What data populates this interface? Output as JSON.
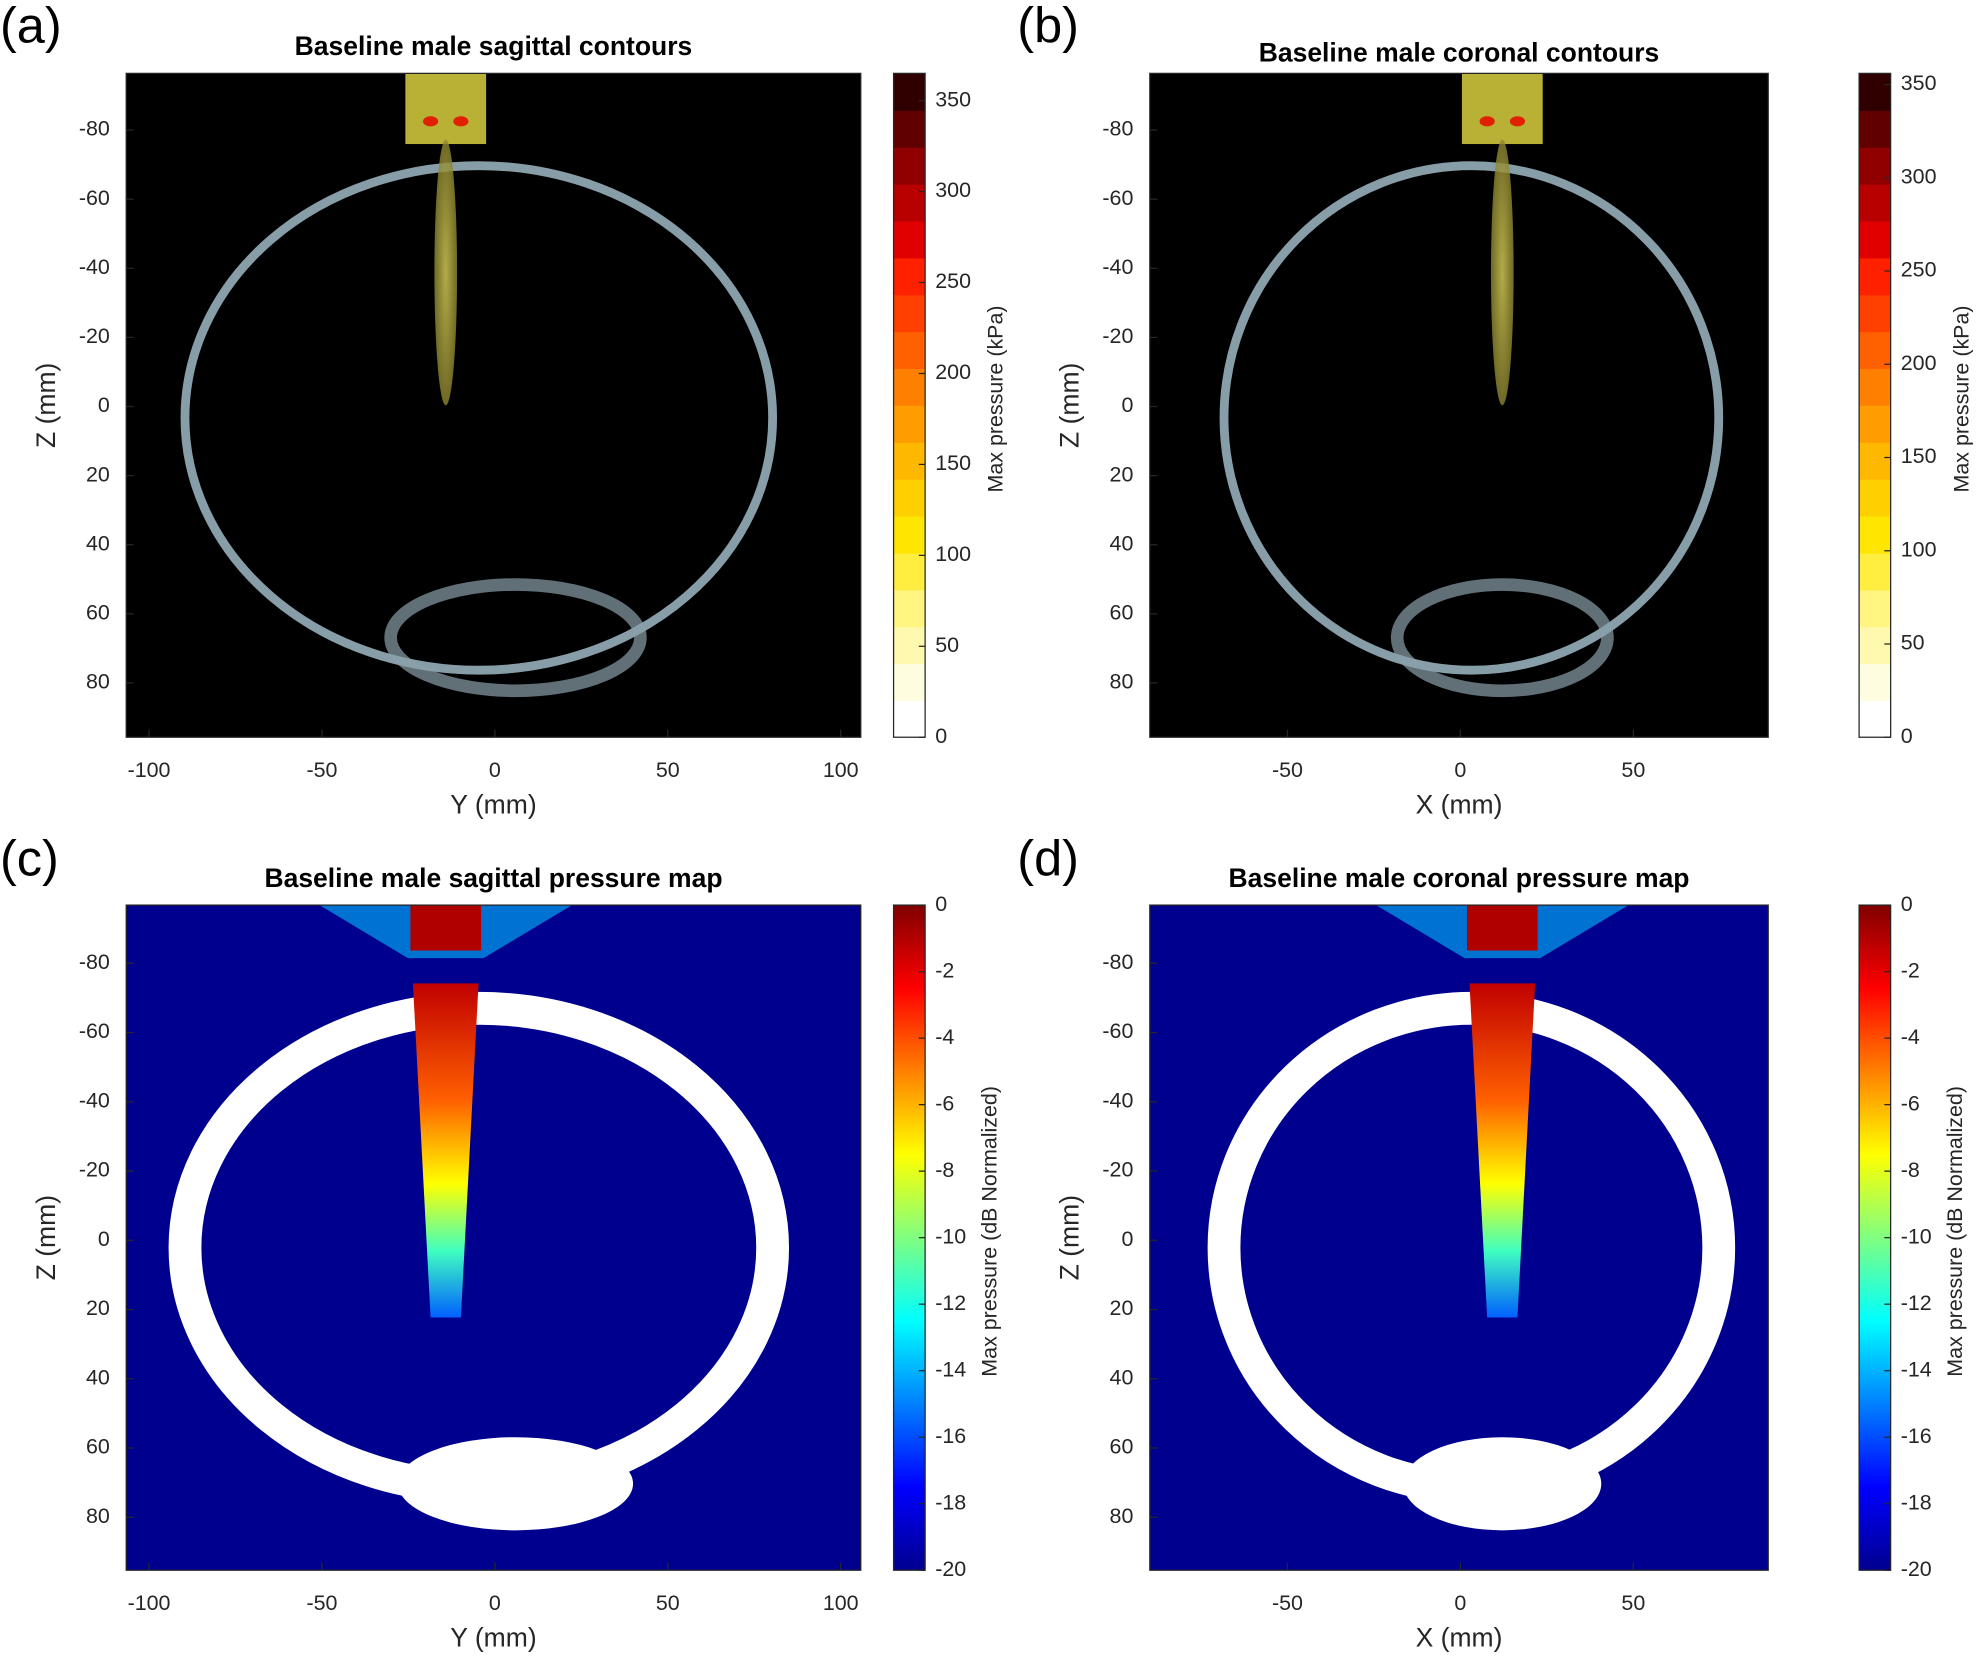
{
  "chart_data": [
    {
      "type": "image",
      "panel_label": "(a)",
      "title": "Baseline male sagittal contours",
      "xlabel": "Y (mm)",
      "ylabel": "Z (mm)",
      "xlim": [
        -106.6,
        105.8
      ],
      "xticks": [
        -100,
        -50,
        0,
        50,
        100
      ],
      "ylim": [
        -96.4,
        95.7
      ],
      "y_direction": "reverse",
      "yticks": [
        -80,
        -60,
        -40,
        -20,
        0,
        20,
        40,
        60,
        80
      ],
      "background": "#000000",
      "colorbar": {
        "label": "Max pressure (kPa)",
        "lim": [
          0,
          365
        ],
        "ticks": [
          0,
          50,
          100,
          150,
          200,
          250,
          300,
          350
        ],
        "discrete": true,
        "colors": [
          "#ffffff",
          "#fffde0",
          "#fff9b0",
          "#fff580",
          "#ffee40",
          "#ffe600",
          "#ffd000",
          "#ffb800",
          "#ff9c00",
          "#ff8000",
          "#ff6000",
          "#ff4000",
          "#ff2000",
          "#e00000",
          "#b80000",
          "#900000",
          "#600000",
          "#300000"
        ]
      }
    },
    {
      "type": "image",
      "panel_label": "(b)",
      "title": "Baseline male coronal contours",
      "xlabel": "X (mm)",
      "ylabel": "Z (mm)",
      "xlim": [
        -89.8,
        89
      ],
      "xticks": [
        -50,
        0,
        50
      ],
      "ylim": [
        -96.4,
        95.7
      ],
      "y_direction": "reverse",
      "yticks": [
        -80,
        -60,
        -40,
        -20,
        0,
        20,
        40,
        60,
        80
      ],
      "background": "#000000",
      "colorbar": {
        "label": "Max pressure (kPa)",
        "lim": [
          0,
          356
        ],
        "ticks": [
          0,
          50,
          100,
          150,
          200,
          250,
          300,
          350
        ],
        "discrete": true,
        "colors": [
          "#ffffff",
          "#fffde0",
          "#fff9b0",
          "#fff580",
          "#ffee40",
          "#ffe600",
          "#ffd000",
          "#ffb800",
          "#ff9c00",
          "#ff8000",
          "#ff6000",
          "#ff4000",
          "#ff2000",
          "#e00000",
          "#b80000",
          "#900000",
          "#600000",
          "#300000"
        ]
      }
    },
    {
      "type": "image",
      "panel_label": "(c)",
      "title": "Baseline male sagittal pressure map",
      "xlabel": "Y (mm)",
      "ylabel": "Z (mm)",
      "xlim": [
        -106.6,
        105.8
      ],
      "xticks": [
        -100,
        -50,
        0,
        50,
        100
      ],
      "ylim": [
        -96.8,
        95.3
      ],
      "y_direction": "reverse",
      "yticks": [
        -80,
        -60,
        -40,
        -20,
        0,
        20,
        40,
        60,
        80
      ],
      "background": "#00008f",
      "colorbar": {
        "label": "Max pressure (dB Normalized)",
        "lim": [
          -20,
          0
        ],
        "ticks": [
          0,
          -2,
          -4,
          -6,
          -8,
          -10,
          -12,
          -14,
          -16,
          -18,
          -20
        ],
        "discrete": false,
        "colors": [
          "#00008f",
          "#0000ff",
          "#0080ff",
          "#00ffff",
          "#80ff80",
          "#ffff00",
          "#ff8000",
          "#ff0000",
          "#800000"
        ]
      }
    },
    {
      "type": "image",
      "panel_label": "(d)",
      "title": "Baseline male coronal pressure map",
      "xlabel": "X (mm)",
      "ylabel": "Z (mm)",
      "xlim": [
        -89.8,
        89
      ],
      "xticks": [
        -50,
        0,
        50
      ],
      "ylim": [
        -96.8,
        95.3
      ],
      "y_direction": "reverse",
      "yticks": [
        -80,
        -60,
        -40,
        -20,
        0,
        20,
        40,
        60,
        80
      ],
      "background": "#00008f",
      "colorbar": {
        "label": "Max pressure (dB Normalized)",
        "lim": [
          -20,
          0
        ],
        "ticks": [
          0,
          -2,
          -4,
          -6,
          -8,
          -10,
          -12,
          -14,
          -16,
          -18,
          -20
        ],
        "discrete": false,
        "colors": [
          "#00008f",
          "#0000ff",
          "#0080ff",
          "#00ffff",
          "#80ff80",
          "#ffff00",
          "#ff8000",
          "#ff0000",
          "#800000"
        ]
      }
    }
  ]
}
